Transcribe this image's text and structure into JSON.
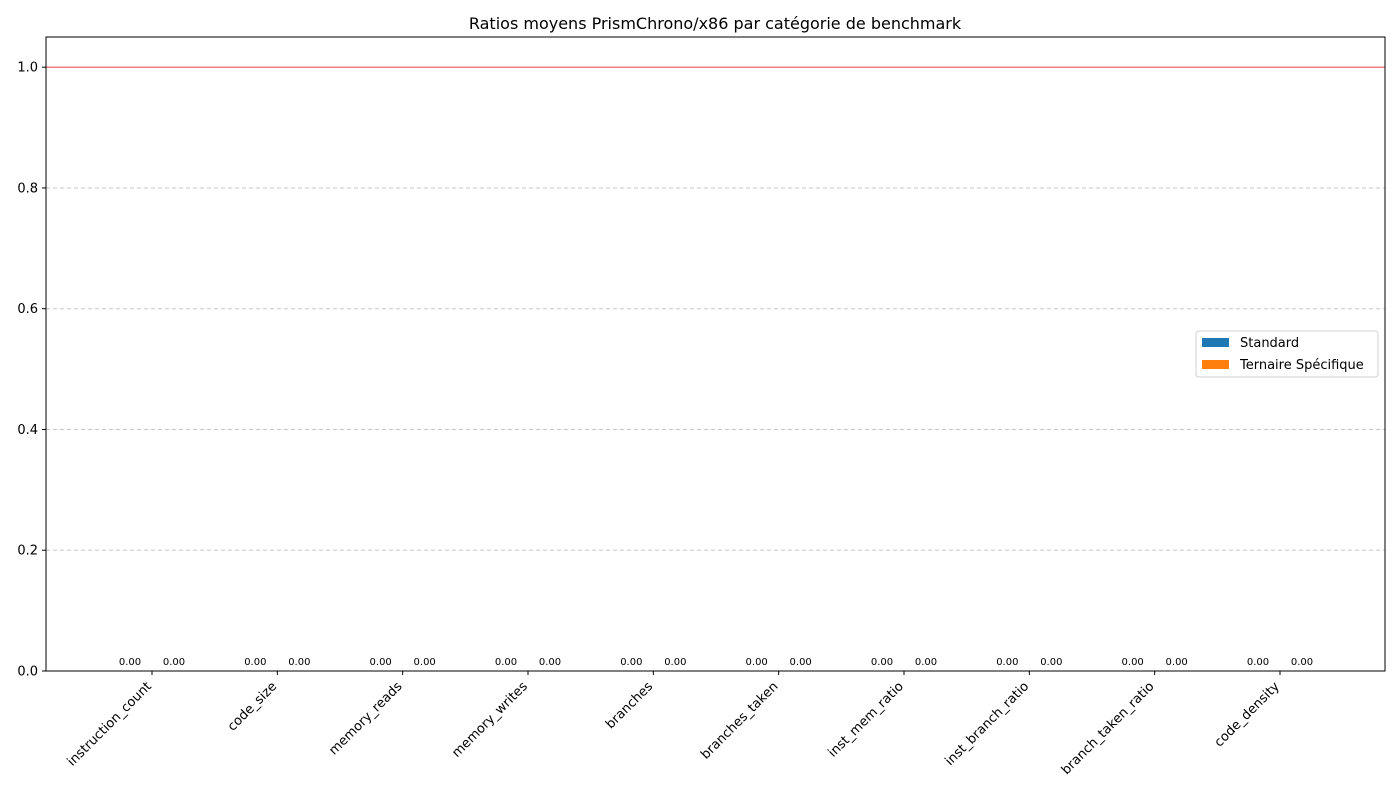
{
  "chart_data": {
    "type": "bar",
    "title": "Ratios moyens PrismChrono/x86 par catégorie de benchmark",
    "xlabel": "",
    "ylabel": "",
    "ylim": [
      0,
      1.05
    ],
    "yticks": [
      0.0,
      0.2,
      0.4,
      0.6,
      0.8,
      1.0
    ],
    "ytick_labels": [
      "0.0",
      "0.2",
      "0.4",
      "0.6",
      "0.8",
      "1.0"
    ],
    "categories": [
      "instruction_count",
      "code_size",
      "memory_reads",
      "memory_writes",
      "branches",
      "branches_taken",
      "inst_mem_ratio",
      "inst_branch_ratio",
      "branch_taken_ratio",
      "code_density"
    ],
    "series": [
      {
        "name": "Standard",
        "color": "#1f77b4",
        "values": [
          0,
          0,
          0,
          0,
          0,
          0,
          0,
          0,
          0,
          0
        ],
        "labels": [
          "0.00",
          "0.00",
          "0.00",
          "0.00",
          "0.00",
          "0.00",
          "0.00",
          "0.00",
          "0.00",
          "0.00"
        ]
      },
      {
        "name": "Ternaire Spécifique",
        "color": "#ff7f0e",
        "values": [
          0,
          0,
          0,
          0,
          0,
          0,
          0,
          0,
          0,
          0
        ],
        "labels": [
          "0.00",
          "0.00",
          "0.00",
          "0.00",
          "0.00",
          "0.00",
          "0.00",
          "0.00",
          "0.00",
          "0.00"
        ]
      }
    ],
    "reference_line": {
      "y": 1.0,
      "color": "#f08080"
    },
    "grid": "y-dashed",
    "legend_position": "center-right"
  }
}
